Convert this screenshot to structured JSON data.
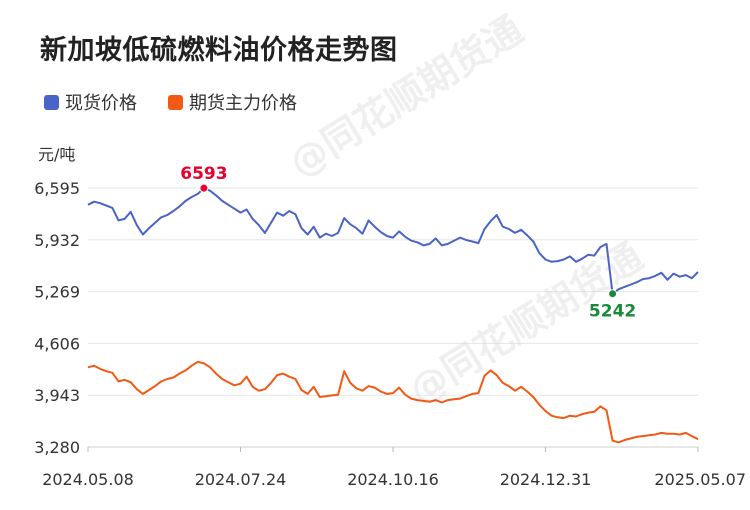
{
  "chart_data": {
    "type": "line",
    "title": "新加坡低硫燃料油价格走势图",
    "ylabel": "元/吨",
    "ylim": [
      3280,
      6595
    ],
    "yticks": [
      "6,595",
      "5,932",
      "5,269",
      "4,606",
      "3,943",
      "3,280"
    ],
    "ytick_values": [
      6595,
      5932,
      5269,
      4606,
      3943,
      3280
    ],
    "xticks": [
      "2024.05.08",
      "2024.07.24",
      "2024.10.16",
      "2024.12.31",
      "2025.05.07"
    ],
    "xlim": [
      0,
      100
    ],
    "grid": true,
    "legend_placement": "top-left",
    "series": [
      {
        "name": "现货价格",
        "color": "#4a63c8",
        "x": [
          0,
          1,
          2,
          3,
          4,
          5,
          6,
          7,
          8,
          9,
          10,
          11,
          12,
          13,
          14,
          15,
          16,
          17,
          18,
          19,
          20,
          21,
          22,
          23,
          24,
          25,
          26,
          27,
          28,
          29,
          30,
          31,
          32,
          33,
          34,
          35,
          36,
          37,
          38,
          39,
          40,
          41,
          42,
          43,
          44,
          45,
          46,
          47,
          48,
          49,
          50,
          51,
          52,
          53,
          54,
          55,
          56,
          57,
          58,
          59,
          60,
          61,
          62,
          63,
          64,
          65,
          66,
          67,
          68,
          69,
          70,
          71,
          72,
          73,
          74,
          75,
          76,
          77,
          78,
          79,
          80,
          81,
          82,
          83,
          84,
          85,
          86,
          87,
          88,
          89,
          90,
          91,
          92,
          93,
          94,
          95,
          96,
          97,
          98,
          99,
          100
        ],
        "values": [
          6380,
          6420,
          6400,
          6370,
          6340,
          6180,
          6200,
          6290,
          6120,
          6000,
          6080,
          6150,
          6220,
          6250,
          6300,
          6360,
          6430,
          6480,
          6520,
          6593,
          6560,
          6500,
          6430,
          6380,
          6330,
          6280,
          6320,
          6200,
          6120,
          6020,
          6150,
          6280,
          6240,
          6300,
          6260,
          6080,
          6000,
          6100,
          5960,
          6010,
          5980,
          6020,
          6210,
          6130,
          6080,
          6010,
          6180,
          6100,
          6030,
          5980,
          5960,
          6040,
          5970,
          5920,
          5900,
          5860,
          5880,
          5950,
          5860,
          5880,
          5920,
          5960,
          5930,
          5910,
          5890,
          6070,
          6170,
          6250,
          6100,
          6070,
          6020,
          6060,
          5990,
          5910,
          5760,
          5680,
          5650,
          5660,
          5680,
          5720,
          5650,
          5690,
          5740,
          5730,
          5840,
          5880,
          5242,
          5300,
          5330,
          5360,
          5390,
          5430,
          5440,
          5470,
          5510,
          5420,
          5500,
          5460,
          5480,
          5440,
          5520
        ]
      },
      {
        "name": "期货主力价格",
        "color": "#f05a14",
        "x": [
          0,
          1,
          2,
          3,
          4,
          5,
          6,
          7,
          8,
          9,
          10,
          11,
          12,
          13,
          14,
          15,
          16,
          17,
          18,
          19,
          20,
          21,
          22,
          23,
          24,
          25,
          26,
          27,
          28,
          29,
          30,
          31,
          32,
          33,
          34,
          35,
          36,
          37,
          38,
          39,
          40,
          41,
          42,
          43,
          44,
          45,
          46,
          47,
          48,
          49,
          50,
          51,
          52,
          53,
          54,
          55,
          56,
          57,
          58,
          59,
          60,
          61,
          62,
          63,
          64,
          65,
          66,
          67,
          68,
          69,
          70,
          71,
          72,
          73,
          74,
          75,
          76,
          77,
          78,
          79,
          80,
          81,
          82,
          83,
          84,
          85,
          86,
          87,
          88,
          89,
          90,
          91,
          92,
          93,
          94,
          95,
          96,
          97,
          98,
          99,
          100
        ],
        "values": [
          4300,
          4320,
          4280,
          4250,
          4230,
          4120,
          4140,
          4110,
          4020,
          3960,
          4010,
          4060,
          4120,
          4150,
          4170,
          4220,
          4260,
          4320,
          4370,
          4350,
          4300,
          4220,
          4150,
          4110,
          4070,
          4090,
          4180,
          4050,
          4000,
          4020,
          4100,
          4200,
          4220,
          4180,
          4150,
          4010,
          3960,
          4050,
          3920,
          3930,
          3940,
          3950,
          4250,
          4100,
          4030,
          4000,
          4060,
          4040,
          3990,
          3960,
          3970,
          4040,
          3950,
          3900,
          3880,
          3870,
          3860,
          3880,
          3850,
          3880,
          3890,
          3900,
          3930,
          3960,
          3970,
          4190,
          4260,
          4200,
          4100,
          4060,
          4000,
          4050,
          3990,
          3920,
          3820,
          3740,
          3680,
          3660,
          3650,
          3680,
          3670,
          3700,
          3720,
          3730,
          3800,
          3750,
          3360,
          3340,
          3370,
          3390,
          3410,
          3420,
          3430,
          3440,
          3460,
          3450,
          3450,
          3440,
          3460,
          3420,
          3380
        ]
      }
    ],
    "annotations": [
      {
        "series": 0,
        "x": 19,
        "value": 6593,
        "label": "6593",
        "color": "#e8002a",
        "position": "above"
      },
      {
        "series": 0,
        "x": 86,
        "value": 5242,
        "label": "5242",
        "color": "#1a8a3a",
        "position": "below"
      }
    ]
  },
  "watermark": "@同花顺期货通"
}
